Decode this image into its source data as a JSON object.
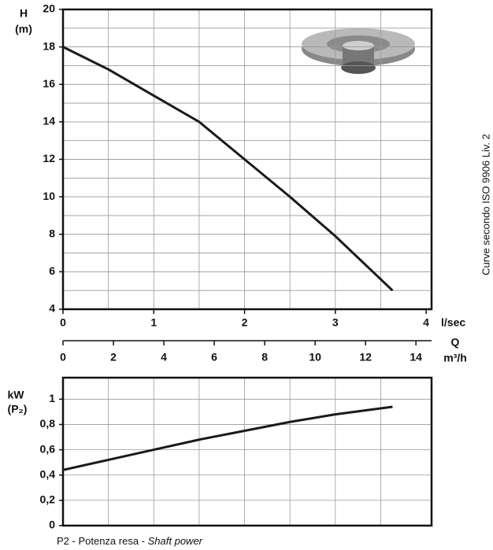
{
  "chart_data": [
    {
      "type": "line",
      "y_label": "H",
      "y_unit": "(m)",
      "x_label": "l/sec",
      "x2_title": "Q",
      "x2_label": "m³/h",
      "x": [
        0,
        0.5,
        1,
        1.5,
        2,
        2.5,
        3,
        3.63
      ],
      "series": [
        {
          "color": "#1a1a1a",
          "values": [
            18,
            16.8,
            15.4,
            14,
            12,
            10,
            7.9,
            5
          ]
        }
      ],
      "xlim": [
        0,
        4.06
      ],
      "xticks": [
        0,
        1,
        2,
        3,
        4
      ],
      "xgrid": [
        0.5,
        1,
        1.5,
        2,
        2.5,
        3,
        3.5
      ],
      "x2lim": [
        0,
        14.62
      ],
      "x2ticks": [
        0,
        2,
        4,
        6,
        8,
        10,
        12,
        14
      ],
      "ylim": [
        4,
        20
      ],
      "yticks": [
        4,
        6,
        8,
        10,
        12,
        14,
        16,
        18,
        20
      ],
      "ygrid": [
        5,
        6,
        7,
        8,
        9,
        10,
        11,
        12,
        13,
        14,
        15,
        16,
        17,
        18,
        19
      ],
      "grid": true
    },
    {
      "type": "line",
      "y_label": "kW",
      "y_unit": "(P₂)",
      "x": [
        0,
        0.5,
        1,
        1.5,
        2,
        2.5,
        3,
        3.63
      ],
      "series": [
        {
          "color": "#1a1a1a",
          "values": [
            0.44,
            0.52,
            0.6,
            0.68,
            0.75,
            0.82,
            0.88,
            0.94
          ]
        }
      ],
      "xlim": [
        0,
        4.06
      ],
      "xgrid": [
        0.5,
        1,
        1.5,
        2,
        2.5,
        3,
        3.5
      ],
      "ylim": [
        0,
        1.17
      ],
      "yticks": [
        0,
        {
          "value": 0.2,
          "label": "0,2"
        },
        {
          "value": 0.4,
          "label": "0,4"
        },
        {
          "value": 0.6,
          "label": "0,6"
        },
        {
          "value": 0.8,
          "label": "0,8"
        },
        1
      ],
      "grid": true
    }
  ],
  "side_note": "Curve secondo ISO 9906 Liv. 2",
  "footer": {
    "text": "P2 - Potenza resa - ",
    "italic": "Shaft power"
  }
}
